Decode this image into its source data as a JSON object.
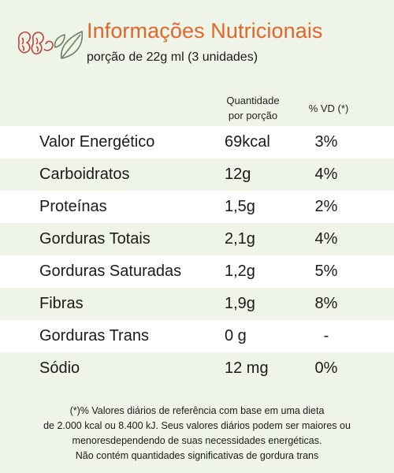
{
  "header": {
    "title": "Informações Nutricionais",
    "serving": "porção de 22g ml (3 unidades)"
  },
  "columns": {
    "quantity_line1": "Quantidade",
    "quantity_line2": "por porção",
    "daily_value": "% VD (*)"
  },
  "rows": [
    {
      "name": "Valor Energético",
      "quantity": "69kcal",
      "dv": "3%"
    },
    {
      "name": "Carboidratos",
      "quantity": "12g",
      "dv": "4%"
    },
    {
      "name": "Proteínas",
      "quantity": "1,5g",
      "dv": "2%"
    },
    {
      "name": "Gorduras Totais",
      "quantity": "2,1g",
      "dv": "4%"
    },
    {
      "name": "Gorduras Saturadas",
      "quantity": "1,2g",
      "dv": "5%"
    },
    {
      "name": "Fibras",
      "quantity": "1,9g",
      "dv": "8%"
    },
    {
      "name": "Gorduras Trans",
      "quantity": "0 g",
      "dv": "-"
    },
    {
      "name": "Sódio",
      "quantity": "12 mg",
      "dv": "0%"
    }
  ],
  "footnote": {
    "line1": "(*)% Valores diários de referência com base em uma dieta",
    "line2": "de 2.000 kcal ou 8.400 kJ. Seus valores diários podem ser maiores ou",
    "line3": "menoresdependendo de suas necessidades energéticas.",
    "line4": "Não contém quantidades significativas de gordura trans"
  },
  "colors": {
    "title": "#e2652a",
    "background": "#eef5e8",
    "row_highlight": "#ffffff",
    "logo_nuts": "#c0413a",
    "logo_leaf": "#6f7f63"
  },
  "icons": [
    "nuts-icon",
    "leaf-icon"
  ]
}
